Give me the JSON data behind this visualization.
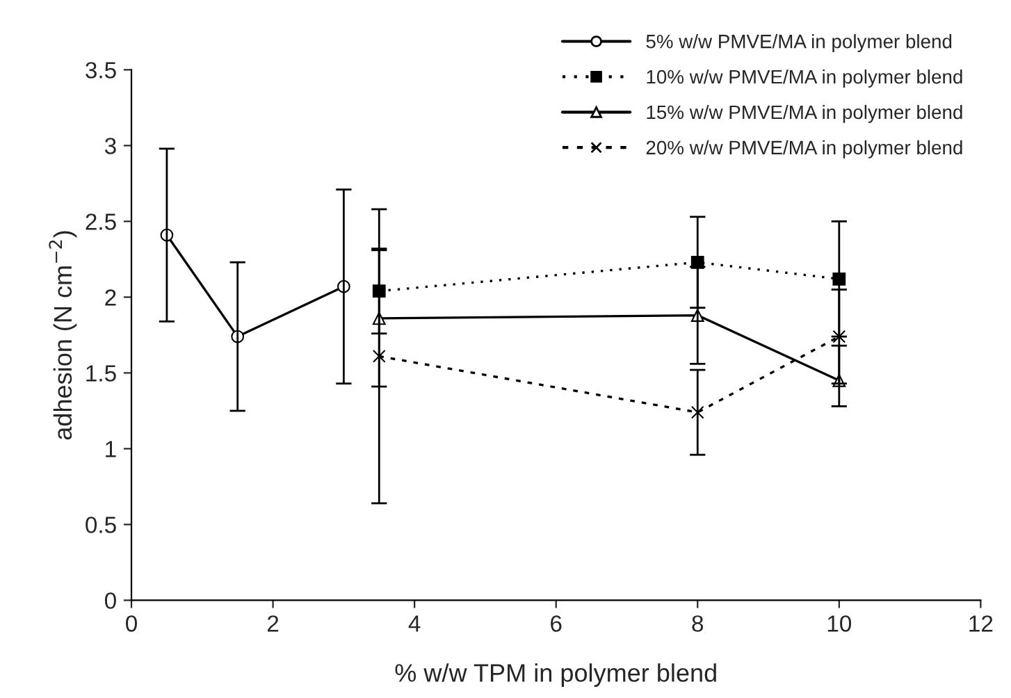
{
  "chart_data": {
    "type": "line",
    "xlabel": "% w/w TPM in polymer blend",
    "ylabel": "adhesion (N cm$^{−2}$)",
    "xlim": [
      0,
      12
    ],
    "xticks": [
      0,
      2,
      4,
      6,
      8,
      10,
      12
    ],
    "ylim": [
      0,
      3.5
    ],
    "yticks": [
      0,
      0.5,
      1,
      1.5,
      2,
      2.5,
      3,
      3.5
    ],
    "grid": false,
    "legend": "top right",
    "series": [
      {
        "name": "5% w/w PMVE/MA in polymer blend",
        "color": "#000000",
        "marker": "circle",
        "line_style": "solid",
        "x": [
          0.5,
          1.5,
          3
        ],
        "values": [
          2.41,
          1.74,
          2.07
        ],
        "errors": [
          0.57,
          0.49,
          0.64
        ]
      },
      {
        "name": "10% w/w PMVE/MA in polymer blend",
        "color": "#000000",
        "marker": "square",
        "line_style": "dotted",
        "x": [
          3.5,
          8,
          10
        ],
        "values": [
          2.04,
          2.23,
          2.12
        ],
        "errors": [
          0.28,
          0.3,
          0.38
        ]
      },
      {
        "name": "15% w/w PMVE/MA in polymer blend",
        "color": "#000000",
        "marker": "triangle",
        "line_style": "solid",
        "x": [
          3.5,
          8,
          10
        ],
        "values": [
          1.86,
          1.88,
          1.45
        ],
        "errors": [
          0.45,
          0.32,
          [
            1.28,
            1.68
          ]
        ]
      },
      {
        "name": "20% w/w PMVE/MA in polymer blend",
        "color": "#000000",
        "marker": "cross",
        "line_style": "dashed",
        "x": [
          3.5,
          8,
          10
        ],
        "values": [
          1.61,
          1.24,
          1.74
        ],
        "errors": [
          0.97,
          0.28,
          0.31
        ]
      }
    ]
  }
}
